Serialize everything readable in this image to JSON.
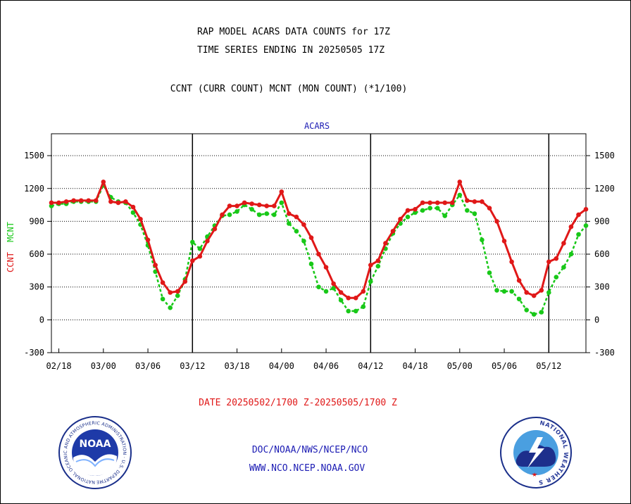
{
  "header": {
    "title_line1": "RAP MODEL ACARS DATA COUNTS for 17Z",
    "title_line2": "TIME SERIES ENDING IN 20250505 17Z",
    "subtitle": "CCNT (CURR COUNT) MCNT (MON COUNT) (*1/100)"
  },
  "footer": {
    "date_range": "DATE 20250502/1700 Z-20250505/1700 Z",
    "link1": "DOC/NOAA/NWS/NCEP/NCO",
    "link2": "WWW.NCO.NCEP.NOAA.GOV"
  },
  "logos": {
    "noaa_text": "NOAA",
    "noaa_ring": "NATIONAL OCEANIC AND ATMOSPHERIC ADMINISTRATION · U.S. DEPARTMENT OF COMMERCE",
    "nws_ring": "NATIONAL WEATHER SERVICE"
  },
  "colors": {
    "ccnt": "#e01818",
    "mcnt": "#18c818",
    "title_blue": "#1c1cb4"
  },
  "chart_data": {
    "type": "line",
    "title": "ACARS",
    "ylabel_left": [
      "CCNT",
      "MCNT"
    ],
    "ylim": [
      -300,
      1700
    ],
    "yticks": [
      -300,
      0,
      300,
      600,
      900,
      1200,
      1500
    ],
    "x_ticks": [
      "02/18",
      "03/00",
      "03/06",
      "03/12",
      "03/18",
      "04/00",
      "04/06",
      "04/12",
      "04/18",
      "05/00",
      "05/06",
      "05/12"
    ],
    "x_tick_hours": [
      -54,
      -48,
      -42,
      -36,
      -30,
      -24,
      -18,
      -12,
      -6,
      0,
      6,
      12
    ],
    "x_range_hours": [
      -55,
      17
    ],
    "day_boundaries_hours": [
      -36,
      -12,
      12
    ],
    "grid": "horizontal",
    "series": [
      {
        "name": "CCNT",
        "color": "#e01818",
        "x": [
          -55,
          -54,
          -53,
          -52,
          -51,
          -50,
          -49,
          -48,
          -47,
          -46,
          -45,
          -44,
          -43,
          -42,
          -41,
          -40,
          -39,
          -38,
          -37,
          -36,
          -35,
          -34,
          -33,
          -32,
          -31,
          -30,
          -29,
          -28,
          -27,
          -26,
          -25,
          -24,
          -23,
          -22,
          -21,
          -20,
          -19,
          -18,
          -17,
          -16,
          -15,
          -14,
          -13,
          -12,
          -11,
          -10,
          -9,
          -8,
          -7,
          -6,
          -5,
          -4,
          -3,
          -2,
          -1,
          0,
          1,
          2,
          3,
          4,
          5,
          6,
          7,
          8,
          9,
          10,
          11,
          12,
          13,
          14,
          15,
          16,
          17
        ],
        "values": [
          1070,
          1070,
          1080,
          1090,
          1090,
          1090,
          1090,
          1260,
          1080,
          1070,
          1080,
          1030,
          920,
          730,
          500,
          340,
          250,
          260,
          350,
          540,
          580,
          720,
          830,
          960,
          1040,
          1040,
          1070,
          1060,
          1050,
          1040,
          1040,
          1170,
          970,
          940,
          870,
          750,
          600,
          480,
          330,
          250,
          200,
          200,
          260,
          500,
          540,
          700,
          810,
          920,
          1000,
          1010,
          1070,
          1070,
          1070,
          1070,
          1070,
          1260,
          1090,
          1080,
          1080,
          1020,
          900,
          720,
          530,
          360,
          250,
          220,
          270,
          530,
          560,
          700,
          850,
          960,
          1010
        ]
      },
      {
        "name": "MCNT",
        "color": "#18c818",
        "x": [
          -55,
          -54,
          -53,
          -52,
          -51,
          -50,
          -49,
          -48,
          -47,
          -46,
          -45,
          -44,
          -43,
          -42,
          -41,
          -40,
          -39,
          -38,
          -37,
          -36,
          -35,
          -34,
          -33,
          -32,
          -31,
          -30,
          -29,
          -28,
          -27,
          -26,
          -25,
          -24,
          -23,
          -22,
          -21,
          -20,
          -19,
          -18,
          -17,
          -16,
          -15,
          -14,
          -13,
          -12,
          -11,
          -10,
          -9,
          -8,
          -7,
          -6,
          -5,
          -4,
          -3,
          -2,
          -1,
          0,
          1,
          2,
          3,
          4,
          5,
          6,
          7,
          8,
          9,
          10,
          11,
          12,
          13,
          14,
          15,
          16,
          17
        ],
        "values": [
          1040,
          1060,
          1060,
          1080,
          1080,
          1080,
          1080,
          1230,
          1120,
          1080,
          1070,
          980,
          870,
          680,
          440,
          190,
          110,
          220,
          370,
          710,
          650,
          760,
          860,
          950,
          960,
          990,
          1050,
          1010,
          960,
          970,
          960,
          1070,
          880,
          810,
          720,
          510,
          300,
          260,
          290,
          180,
          80,
          80,
          120,
          350,
          490,
          650,
          790,
          880,
          940,
          980,
          1000,
          1020,
          1020,
          950,
          1050,
          1140,
          1000,
          970,
          730,
          430,
          270,
          260,
          260,
          190,
          90,
          50,
          70,
          250,
          390,
          480,
          600,
          780,
          860
        ]
      }
    ]
  }
}
